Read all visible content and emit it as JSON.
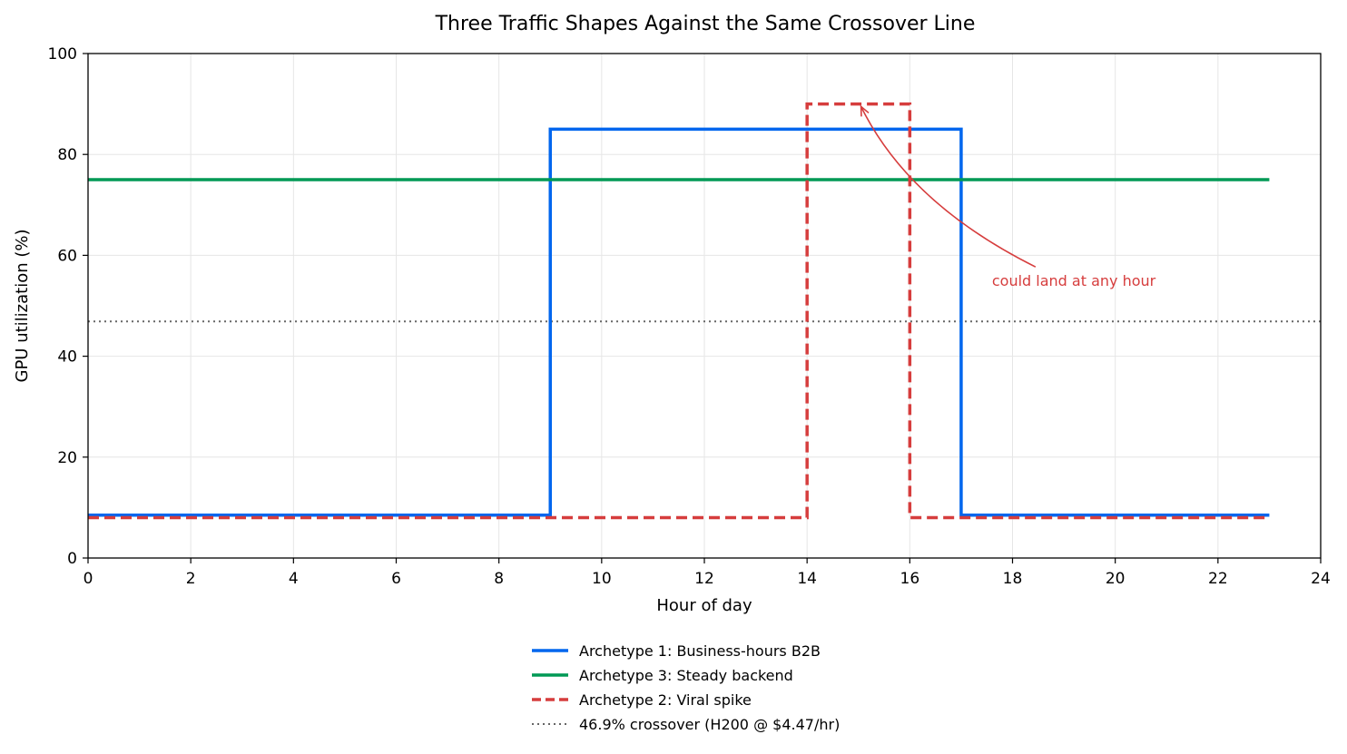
{
  "chart_data": {
    "type": "line",
    "title": "Three Traffic Shapes Against the Same Crossover Line",
    "xlabel": "Hour of day",
    "ylabel": "GPU utilization (%)",
    "xlim": [
      0,
      24
    ],
    "ylim": [
      0,
      100
    ],
    "xticks": [
      0,
      2,
      4,
      6,
      8,
      10,
      12,
      14,
      16,
      18,
      20,
      22,
      24
    ],
    "yticks": [
      0,
      20,
      40,
      60,
      80,
      100
    ],
    "grid": true,
    "legend_position": "bottom-center",
    "series": [
      {
        "name": "Archetype 1: Business-hours B2B",
        "color": "#0066ee",
        "style": "solid",
        "step": true,
        "x": [
          0,
          9,
          17,
          23
        ],
        "y": [
          8.5,
          85,
          8.5,
          8.5
        ]
      },
      {
        "name": "Archetype 3: Steady backend",
        "color": "#009955",
        "style": "solid",
        "step": true,
        "x": [
          0,
          23
        ],
        "y": [
          75,
          75
        ]
      },
      {
        "name": "Archetype 2: Viral spike",
        "color": "#d63d3d",
        "style": "dashed",
        "step": true,
        "x": [
          0,
          14,
          16,
          23
        ],
        "y": [
          8,
          90,
          8,
          8
        ]
      }
    ],
    "reference_line": {
      "label": "46.9% crossover (H200 @ $4.47/hr)",
      "y": 46.9,
      "color": "#666666",
      "style": "dotted"
    },
    "annotation": {
      "text": "could land at any hour",
      "text_x": 17.6,
      "text_y": 55,
      "arrow_to_x": 15.05,
      "arrow_to_y": 89.5,
      "color": "#d63d3d"
    }
  }
}
